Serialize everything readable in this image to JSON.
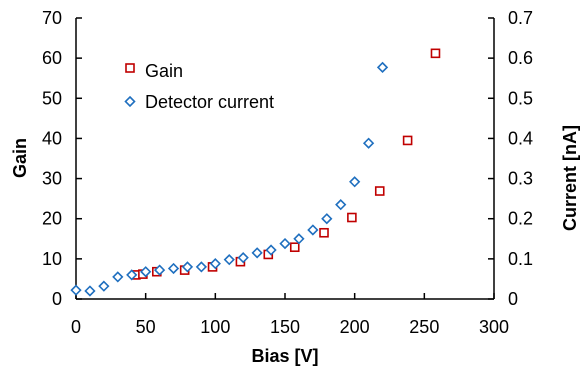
{
  "chart_data": {
    "type": "scatter",
    "title": "",
    "xlabel": "Bias [V]",
    "ylabel_left": "Gain",
    "ylabel_right": "Current [nA]",
    "xlim": [
      0,
      300
    ],
    "ylim_left": [
      0,
      70
    ],
    "ylim_right": [
      0,
      0.7
    ],
    "x_ticks": [
      "0",
      "50",
      "100",
      "150",
      "200",
      "250",
      "300"
    ],
    "y_left_ticks": [
      "0",
      "10",
      "20",
      "30",
      "40",
      "50",
      "60",
      "70"
    ],
    "y_right_ticks": [
      "0",
      "0.1",
      "0.2",
      "0.3",
      "0.4",
      "0.5",
      "0.6",
      "0.7"
    ],
    "grid": false,
    "legend_position": "top-left",
    "series": [
      {
        "name": "Gain",
        "axis": "left",
        "marker": "square",
        "color": "#c00000",
        "points": [
          [
            43,
            6
          ],
          [
            48,
            6.2
          ],
          [
            58,
            6.8
          ],
          [
            78,
            7.2
          ],
          [
            98,
            8
          ],
          [
            118,
            9.3
          ],
          [
            138,
            11.1
          ],
          [
            157,
            12.9
          ],
          [
            178,
            16.5
          ],
          [
            198,
            20.3
          ],
          [
            218,
            26.9
          ],
          [
            238,
            39.5
          ],
          [
            258,
            61.2
          ]
        ]
      },
      {
        "name": "Detector current",
        "axis": "right",
        "marker": "diamond",
        "color": "#1f6fbf",
        "points": [
          [
            0,
            0.022
          ],
          [
            10,
            0.02
          ],
          [
            20,
            0.032
          ],
          [
            30,
            0.055
          ],
          [
            40,
            0.06
          ],
          [
            50,
            0.068
          ],
          [
            60,
            0.072
          ],
          [
            70,
            0.076
          ],
          [
            80,
            0.08
          ],
          [
            90,
            0.08
          ],
          [
            100,
            0.088
          ],
          [
            110,
            0.098
          ],
          [
            120,
            0.103
          ],
          [
            130,
            0.115
          ],
          [
            140,
            0.122
          ],
          [
            150,
            0.138
          ],
          [
            160,
            0.15
          ],
          [
            170,
            0.172
          ],
          [
            180,
            0.2
          ],
          [
            190,
            0.235
          ],
          [
            200,
            0.292
          ],
          [
            210,
            0.388
          ],
          [
            220,
            0.577
          ]
        ]
      }
    ]
  }
}
